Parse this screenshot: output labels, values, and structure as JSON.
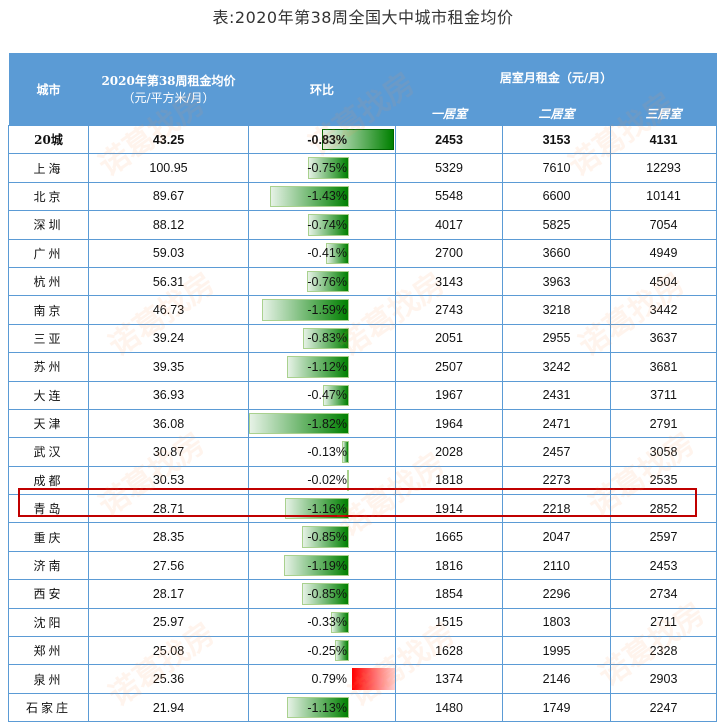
{
  "title": "表:2020年第38周全国大中城市租金均价",
  "watermark_text": "诺葛找房",
  "colors": {
    "header_bg": "#5b9bd5",
    "border": "#5b9bd5",
    "bar_negative": "#008000",
    "bar_positive": "#ff0000",
    "highlight_border": "#c00000"
  },
  "headers": {
    "city": "城市",
    "avg_price_line1": "2020年第38周租金均价",
    "avg_price_line2": "（元/平方米/月）",
    "ratio": "环比",
    "room_rent_group": "居室月租金（元/月）",
    "one_room": "一居室",
    "two_room": "二居室",
    "three_room": "三居室"
  },
  "rows": [
    {
      "city": "20城",
      "avg": "43.25",
      "ratio": "-0.83%",
      "ratio_value": -0.83,
      "r1": "2453",
      "r2": "3153",
      "r3": "4131",
      "total": true
    },
    {
      "city": "上海",
      "avg": "100.95",
      "ratio": "-0.75%",
      "ratio_value": -0.75,
      "r1": "5329",
      "r2": "7610",
      "r3": "12293"
    },
    {
      "city": "北京",
      "avg": "89.67",
      "ratio": "-1.43%",
      "ratio_value": -1.43,
      "r1": "5548",
      "r2": "6600",
      "r3": "10141"
    },
    {
      "city": "深圳",
      "avg": "88.12",
      "ratio": "-0.74%",
      "ratio_value": -0.74,
      "r1": "4017",
      "r2": "5825",
      "r3": "7054"
    },
    {
      "city": "广州",
      "avg": "59.03",
      "ratio": "-0.41%",
      "ratio_value": -0.41,
      "r1": "2700",
      "r2": "3660",
      "r3": "4949"
    },
    {
      "city": "杭州",
      "avg": "56.31",
      "ratio": "-0.76%",
      "ratio_value": -0.76,
      "r1": "3143",
      "r2": "3963",
      "r3": "4504"
    },
    {
      "city": "南京",
      "avg": "46.73",
      "ratio": "-1.59%",
      "ratio_value": -1.59,
      "r1": "2743",
      "r2": "3218",
      "r3": "3442"
    },
    {
      "city": "三亚",
      "avg": "39.24",
      "ratio": "-0.83%",
      "ratio_value": -0.83,
      "r1": "2051",
      "r2": "2955",
      "r3": "3637"
    },
    {
      "city": "苏州",
      "avg": "39.35",
      "ratio": "-1.12%",
      "ratio_value": -1.12,
      "r1": "2507",
      "r2": "3242",
      "r3": "3681"
    },
    {
      "city": "大连",
      "avg": "36.93",
      "ratio": "-0.47%",
      "ratio_value": -0.47,
      "r1": "1967",
      "r2": "2431",
      "r3": "3711"
    },
    {
      "city": "天津",
      "avg": "36.08",
      "ratio": "-1.82%",
      "ratio_value": -1.82,
      "r1": "1964",
      "r2": "2471",
      "r3": "2791"
    },
    {
      "city": "武汉",
      "avg": "30.87",
      "ratio": "-0.13%",
      "ratio_value": -0.13,
      "r1": "2028",
      "r2": "2457",
      "r3": "3058"
    },
    {
      "city": "成都",
      "avg": "30.53",
      "ratio": "-0.02%",
      "ratio_value": -0.02,
      "r1": "1818",
      "r2": "2273",
      "r3": "2535"
    },
    {
      "city": "青岛",
      "avg": "28.71",
      "ratio": "-1.16%",
      "ratio_value": -1.16,
      "r1": "1914",
      "r2": "2218",
      "r3": "2852",
      "highlighted": true
    },
    {
      "city": "重庆",
      "avg": "28.35",
      "ratio": "-0.85%",
      "ratio_value": -0.85,
      "r1": "1665",
      "r2": "2047",
      "r3": "2597"
    },
    {
      "city": "济南",
      "avg": "27.56",
      "ratio": "-1.19%",
      "ratio_value": -1.19,
      "r1": "1816",
      "r2": "2110",
      "r3": "2453"
    },
    {
      "city": "西安",
      "avg": "28.17",
      "ratio": "-0.85%",
      "ratio_value": -0.85,
      "r1": "1854",
      "r2": "2296",
      "r3": "2734"
    },
    {
      "city": "沈阳",
      "avg": "25.97",
      "ratio": "-0.33%",
      "ratio_value": -0.33,
      "r1": "1515",
      "r2": "1803",
      "r3": "2711"
    },
    {
      "city": "郑州",
      "avg": "25.08",
      "ratio": "-0.25%",
      "ratio_value": -0.25,
      "r1": "1628",
      "r2": "1995",
      "r3": "2328"
    },
    {
      "city": "泉州",
      "avg": "25.36",
      "ratio": "0.79%",
      "ratio_value": 0.79,
      "r1": "1374",
      "r2": "2146",
      "r3": "2903"
    },
    {
      "city": "石家庄",
      "avg": "21.94",
      "ratio": "-1.13%",
      "ratio_value": -1.13,
      "r1": "1480",
      "r2": "1749",
      "r3": "2247"
    }
  ]
}
